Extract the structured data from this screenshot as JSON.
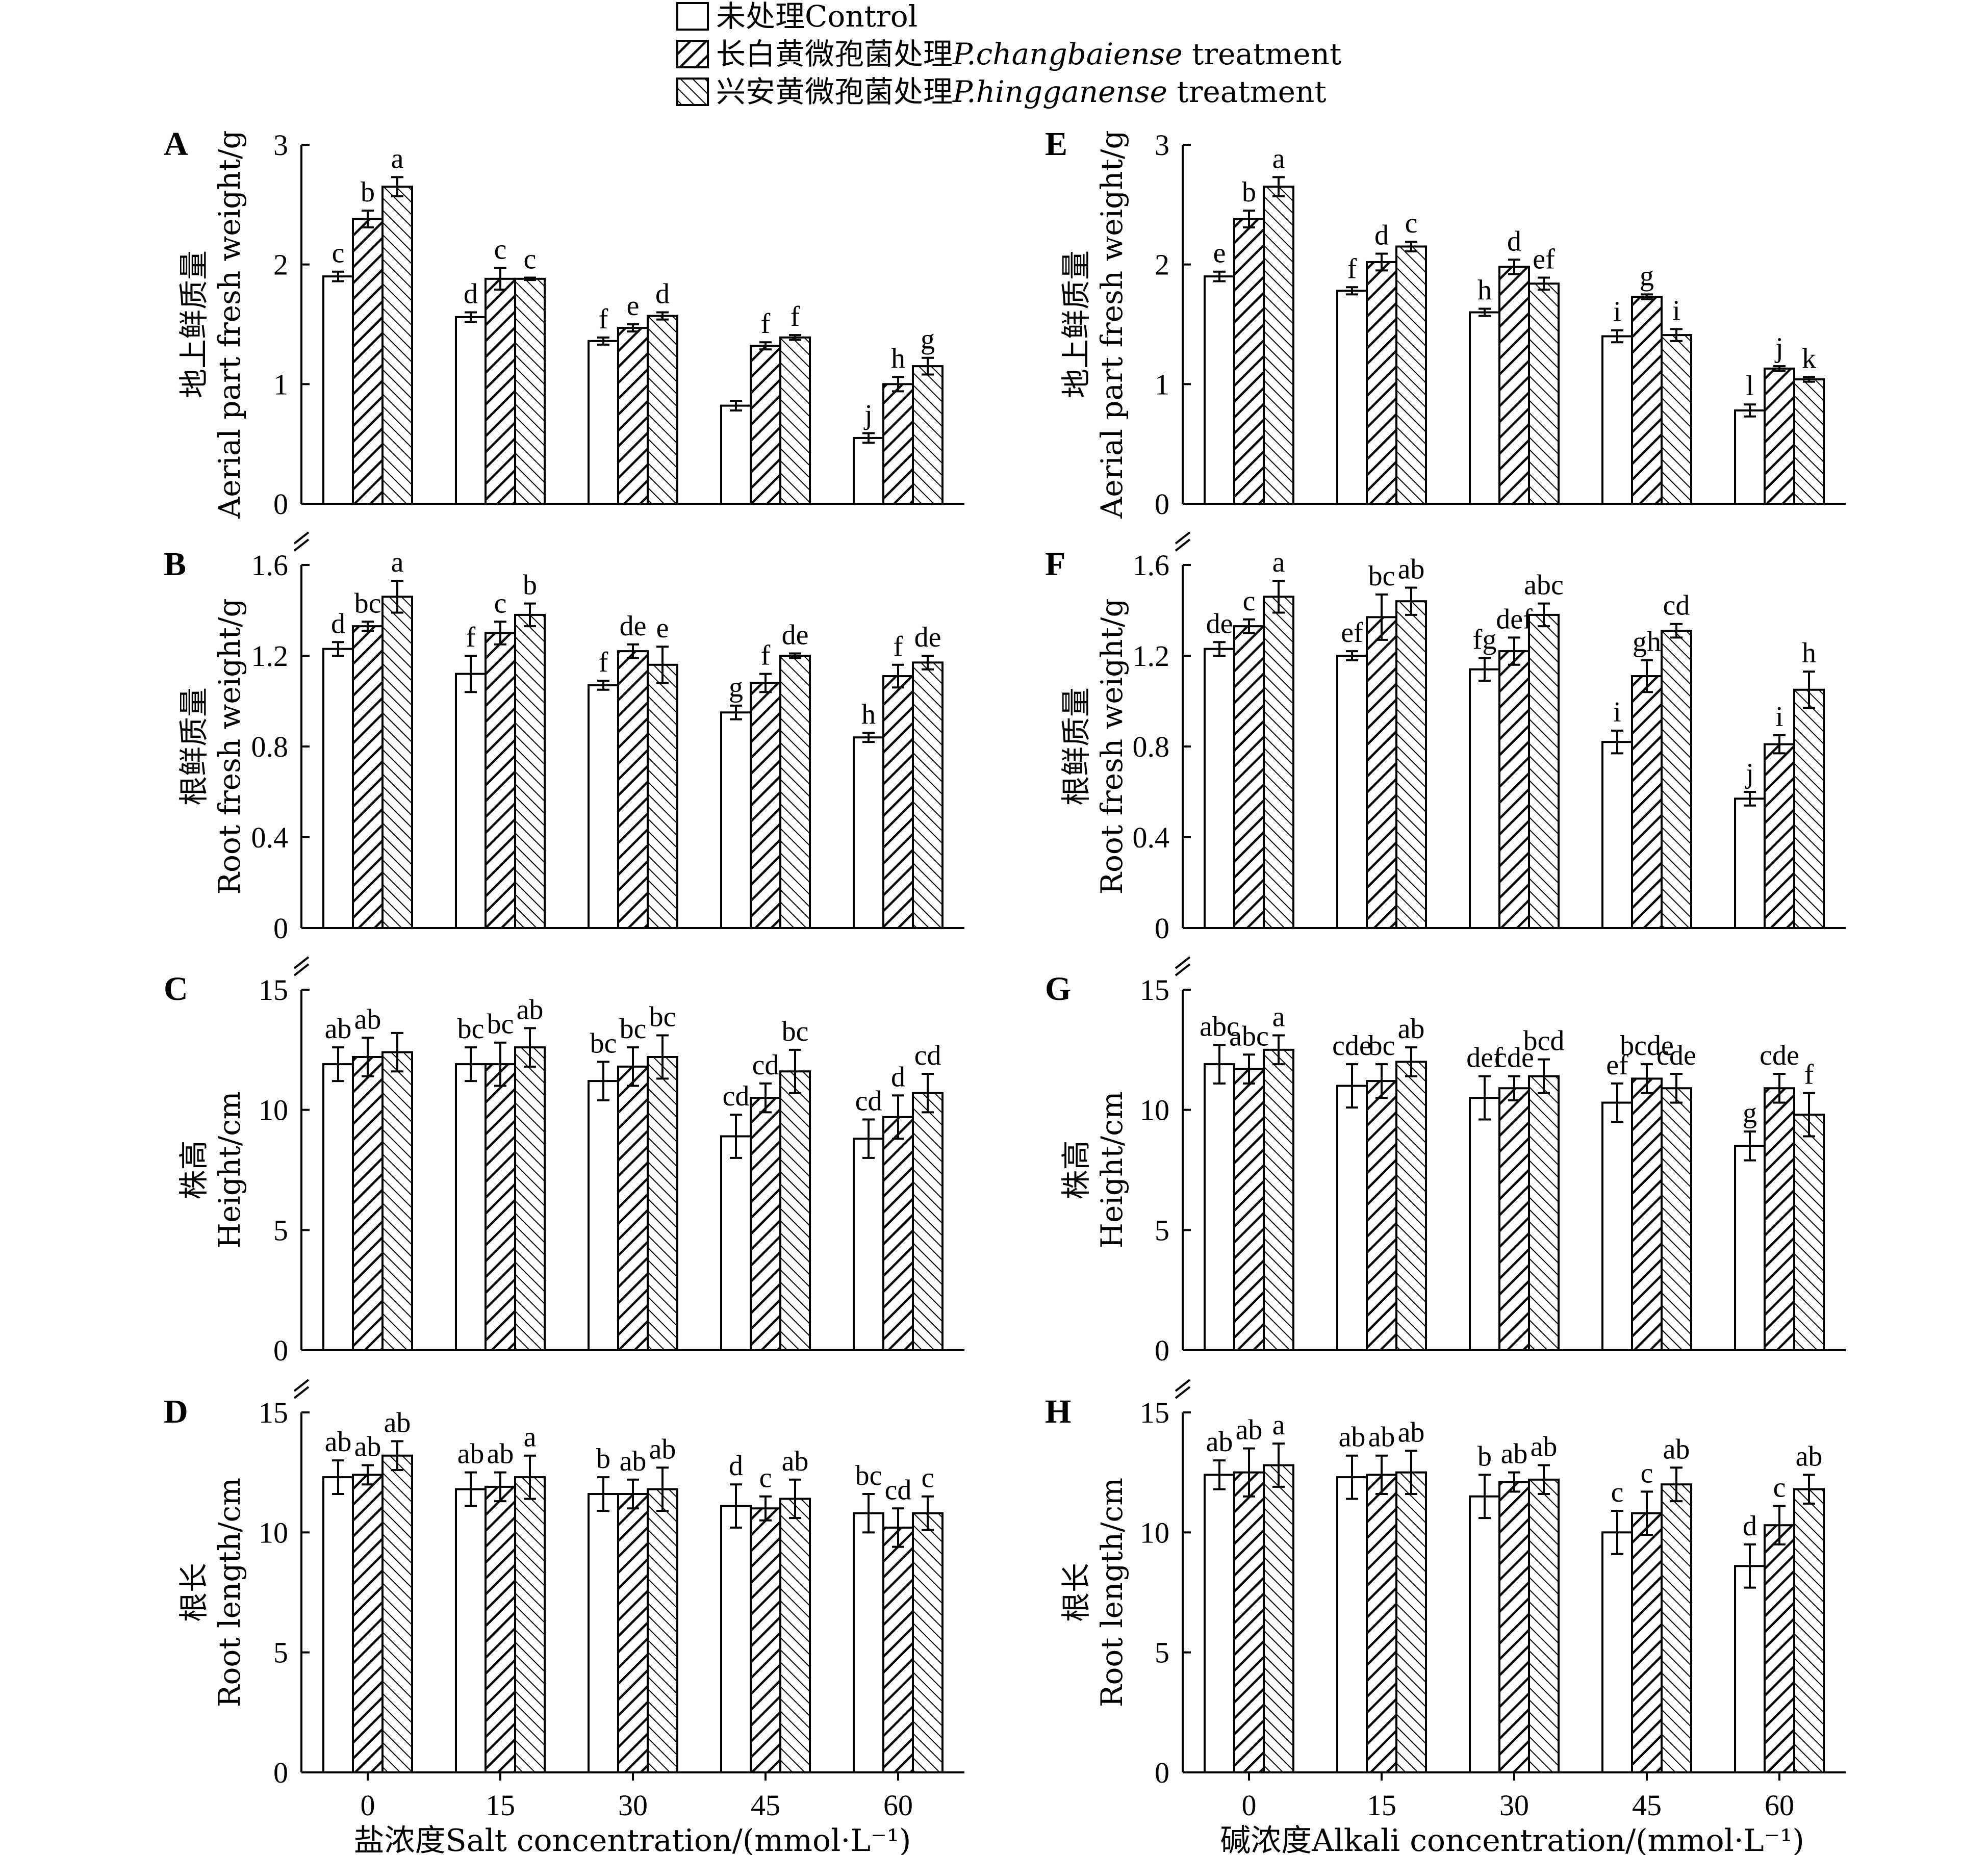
{
  "legend": [
    {
      "zh": "未处理",
      "en": "Control",
      "pattern": "none"
    },
    {
      "zh": "长白黄微孢菌处理",
      "species": "P.changbaiense",
      "en": " treatment",
      "pattern": "hatch-forward"
    },
    {
      "zh": "兴安黄微孢菌处理",
      "species": "P.hingganense",
      "en": " treatment",
      "pattern": "hatch-back"
    }
  ],
  "xlabels": {
    "left": "盐浓度Salt concentration/(mmol·L⁻¹)",
    "right": "碱浓度Alkali concentration/(mmol·L⁻¹)"
  },
  "chart_data": [
    {
      "type": "bar",
      "id": "A",
      "column": "left",
      "row": 0,
      "ylabel_zh": "地上鲜质量",
      "ylabel_en": "Aerial part fresh weight/g",
      "categories": [
        "0",
        "15",
        "30",
        "45",
        "60"
      ],
      "ylim": [
        0,
        3
      ],
      "yticks": [
        "0",
        "1",
        "2",
        "3"
      ],
      "series": [
        {
          "name": "Control",
          "values": [
            1.9,
            1.56,
            1.36,
            0.82,
            0.55
          ],
          "errors": [
            0.04,
            0.04,
            0.03,
            0.04,
            0.04
          ],
          "letters": [
            "c",
            "d",
            "f",
            "",
            "j"
          ]
        },
        {
          "name": "P.changbaiense",
          "values": [
            2.38,
            1.88,
            1.47,
            1.32,
            1.0
          ],
          "errors": [
            0.07,
            0.09,
            0.03,
            0.03,
            0.06
          ],
          "letters": [
            "b",
            "c",
            "e",
            "f",
            "h"
          ]
        },
        {
          "name": "P.hingganense",
          "values": [
            2.65,
            1.88,
            1.57,
            1.39,
            1.15
          ],
          "errors": [
            0.08,
            0.01,
            0.03,
            0.02,
            0.07
          ],
          "letters": [
            "a",
            "c",
            "d",
            "f",
            "g"
          ]
        }
      ]
    },
    {
      "type": "bar",
      "id": "B",
      "column": "left",
      "row": 1,
      "ylabel_zh": "根鲜质量",
      "ylabel_en": "Root fresh weight/g",
      "categories": [
        "0",
        "15",
        "30",
        "45",
        "60"
      ],
      "ylim": [
        0,
        1.6
      ],
      "yticks": [
        "0",
        "0.4",
        "0.8",
        "1.2",
        "1.6"
      ],
      "series": [
        {
          "name": "Control",
          "values": [
            1.23,
            1.12,
            1.07,
            0.95,
            0.84
          ],
          "errors": [
            0.03,
            0.08,
            0.02,
            0.03,
            0.02
          ],
          "letters": [
            "d",
            "f",
            "f",
            "g",
            "h"
          ]
        },
        {
          "name": "P.changbaiense",
          "values": [
            1.33,
            1.3,
            1.22,
            1.08,
            1.11
          ],
          "errors": [
            0.02,
            0.05,
            0.03,
            0.04,
            0.05
          ],
          "letters": [
            "bc",
            "c",
            "de",
            "f",
            "f"
          ]
        },
        {
          "name": "P.hingganense",
          "values": [
            1.46,
            1.38,
            1.16,
            1.2,
            1.17
          ],
          "errors": [
            0.07,
            0.05,
            0.08,
            0.01,
            0.03
          ],
          "letters": [
            "a",
            "b",
            "e",
            "de",
            "de"
          ]
        }
      ]
    },
    {
      "type": "bar",
      "id": "C",
      "column": "left",
      "row": 2,
      "ylabel_zh": "株高",
      "ylabel_en": "Height/cm",
      "categories": [
        "0",
        "15",
        "30",
        "45",
        "60"
      ],
      "ylim": [
        0,
        15
      ],
      "yticks": [
        "0",
        "5",
        "10",
        "15"
      ],
      "series": [
        {
          "name": "Control",
          "values": [
            11.9,
            11.9,
            11.2,
            8.9,
            8.8
          ],
          "errors": [
            0.7,
            0.7,
            0.8,
            0.9,
            0.8
          ],
          "letters": [
            "ab",
            "bc",
            "bc",
            "cd",
            "cd"
          ]
        },
        {
          "name": "P.changbaiense",
          "values": [
            12.2,
            11.9,
            11.8,
            10.5,
            9.7
          ],
          "errors": [
            0.8,
            0.9,
            0.8,
            0.6,
            0.9
          ],
          "letters": [
            "ab",
            "bc",
            "bc",
            "cd",
            "d"
          ]
        },
        {
          "name": "P.hingganense",
          "values": [
            12.4,
            12.6,
            12.2,
            11.6,
            10.7
          ],
          "errors": [
            0.8,
            0.8,
            0.9,
            0.9,
            0.8
          ],
          "letters": [
            "",
            "ab",
            "bc",
            "bc",
            "cd"
          ]
        }
      ]
    },
    {
      "type": "bar",
      "id": "D",
      "column": "left",
      "row": 3,
      "ylabel_zh": "根长",
      "ylabel_en": "Root length/cm",
      "categories": [
        "0",
        "15",
        "30",
        "45",
        "60"
      ],
      "ylim": [
        0,
        15
      ],
      "yticks": [
        "0",
        "5",
        "10",
        "15"
      ],
      "series": [
        {
          "name": "Control",
          "values": [
            12.3,
            11.8,
            11.6,
            11.1,
            10.8
          ],
          "errors": [
            0.7,
            0.7,
            0.7,
            0.9,
            0.8
          ],
          "letters": [
            "ab",
            "ab",
            "b",
            "d",
            "bc"
          ]
        },
        {
          "name": "P.changbaiense",
          "values": [
            12.4,
            11.9,
            11.6,
            11.0,
            10.2
          ],
          "errors": [
            0.4,
            0.6,
            0.6,
            0.5,
            0.8
          ],
          "letters": [
            "ab",
            "ab",
            "ab",
            "c",
            "cd"
          ]
        },
        {
          "name": "P.hingganense",
          "values": [
            13.2,
            12.3,
            11.8,
            11.4,
            10.8
          ],
          "errors": [
            0.6,
            0.9,
            0.9,
            0.8,
            0.7
          ],
          "letters": [
            "ab",
            "a",
            "ab",
            "ab",
            "c"
          ]
        }
      ]
    },
    {
      "type": "bar",
      "id": "E",
      "column": "right",
      "row": 0,
      "ylabel_zh": "地上鲜质量",
      "ylabel_en": "Aerial part fresh weight/g",
      "categories": [
        "0",
        "15",
        "30",
        "45",
        "60"
      ],
      "ylim": [
        0,
        3
      ],
      "yticks": [
        "0",
        "1",
        "2",
        "3"
      ],
      "series": [
        {
          "name": "Control",
          "values": [
            1.9,
            1.78,
            1.6,
            1.4,
            0.78
          ],
          "errors": [
            0.04,
            0.03,
            0.03,
            0.05,
            0.05
          ],
          "letters": [
            "e",
            "f",
            "h",
            "i",
            "l"
          ]
        },
        {
          "name": "P.changbaiense",
          "values": [
            2.38,
            2.02,
            1.98,
            1.73,
            1.13
          ],
          "errors": [
            0.07,
            0.07,
            0.06,
            0.02,
            0.02
          ],
          "letters": [
            "b",
            "d",
            "d",
            "g",
            "j"
          ]
        },
        {
          "name": "P.hingganense",
          "values": [
            2.65,
            2.15,
            1.84,
            1.41,
            1.04
          ],
          "errors": [
            0.08,
            0.04,
            0.05,
            0.05,
            0.02
          ],
          "letters": [
            "a",
            "c",
            "ef",
            "i",
            "k"
          ]
        }
      ]
    },
    {
      "type": "bar",
      "id": "F",
      "column": "right",
      "row": 1,
      "ylabel_zh": "根鲜质量",
      "ylabel_en": "Root fresh weight/g",
      "categories": [
        "0",
        "15",
        "30",
        "45",
        "60"
      ],
      "ylim": [
        0,
        1.6
      ],
      "yticks": [
        "0",
        "0.4",
        "0.8",
        "1.2",
        "1.6"
      ],
      "series": [
        {
          "name": "Control",
          "values": [
            1.23,
            1.2,
            1.14,
            0.82,
            0.57
          ],
          "errors": [
            0.03,
            0.02,
            0.05,
            0.05,
            0.03
          ],
          "letters": [
            "de",
            "ef",
            "fg",
            "i",
            "j"
          ]
        },
        {
          "name": "P.changbaiense",
          "values": [
            1.33,
            1.37,
            1.22,
            1.11,
            0.81
          ],
          "errors": [
            0.03,
            0.1,
            0.06,
            0.07,
            0.04
          ],
          "letters": [
            "c",
            "bc",
            "def",
            "gh",
            "i"
          ]
        },
        {
          "name": "P.hingganense",
          "values": [
            1.46,
            1.44,
            1.38,
            1.31,
            1.05
          ],
          "errors": [
            0.07,
            0.06,
            0.05,
            0.03,
            0.08
          ],
          "letters": [
            "a",
            "ab",
            "abc",
            "cd",
            "h"
          ]
        }
      ]
    },
    {
      "type": "bar",
      "id": "G",
      "column": "right",
      "row": 2,
      "ylabel_zh": "株高",
      "ylabel_en": "Height/cm",
      "categories": [
        "0",
        "15",
        "30",
        "45",
        "60"
      ],
      "ylim": [
        0,
        15
      ],
      "yticks": [
        "0",
        "5",
        "10",
        "15"
      ],
      "series": [
        {
          "name": "Control",
          "values": [
            11.9,
            11.0,
            10.5,
            10.3,
            8.5
          ],
          "errors": [
            0.8,
            0.9,
            0.9,
            0.8,
            0.6
          ],
          "letters": [
            "abc",
            "cde",
            "def",
            "ef",
            "g"
          ]
        },
        {
          "name": "P.changbaiense",
          "values": [
            11.7,
            11.2,
            10.9,
            11.3,
            10.9
          ],
          "errors": [
            0.6,
            0.7,
            0.5,
            0.6,
            0.6
          ],
          "letters": [
            "abc",
            "bc",
            "cde",
            "bcde",
            "cde"
          ]
        },
        {
          "name": "P.hingganense",
          "values": [
            12.5,
            12.0,
            11.4,
            10.9,
            9.8
          ],
          "errors": [
            0.6,
            0.6,
            0.7,
            0.6,
            0.9
          ],
          "letters": [
            "a",
            "ab",
            "bcd",
            "cde",
            "f"
          ]
        }
      ]
    },
    {
      "type": "bar",
      "id": "H",
      "column": "right",
      "row": 3,
      "ylabel_zh": "根长",
      "ylabel_en": "Root length/cm",
      "categories": [
        "0",
        "15",
        "30",
        "45",
        "60"
      ],
      "ylim": [
        0,
        15
      ],
      "yticks": [
        "0",
        "5",
        "10",
        "15"
      ],
      "series": [
        {
          "name": "Control",
          "values": [
            12.4,
            12.3,
            11.5,
            10.0,
            8.6
          ],
          "errors": [
            0.6,
            0.9,
            0.9,
            0.9,
            0.9
          ],
          "letters": [
            "ab",
            "ab",
            "b",
            "c",
            "d"
          ]
        },
        {
          "name": "P.changbaiense",
          "values": [
            12.5,
            12.4,
            12.1,
            10.8,
            10.3
          ],
          "errors": [
            1.0,
            0.8,
            0.4,
            0.9,
            0.8
          ],
          "letters": [
            "ab",
            "ab",
            "ab",
            "c",
            "c"
          ]
        },
        {
          "name": "P.hingganense",
          "values": [
            12.8,
            12.5,
            12.2,
            12.0,
            11.8
          ],
          "errors": [
            0.9,
            0.9,
            0.6,
            0.7,
            0.6
          ],
          "letters": [
            "a",
            "ab",
            "ab",
            "ab",
            "ab"
          ]
        }
      ]
    }
  ]
}
